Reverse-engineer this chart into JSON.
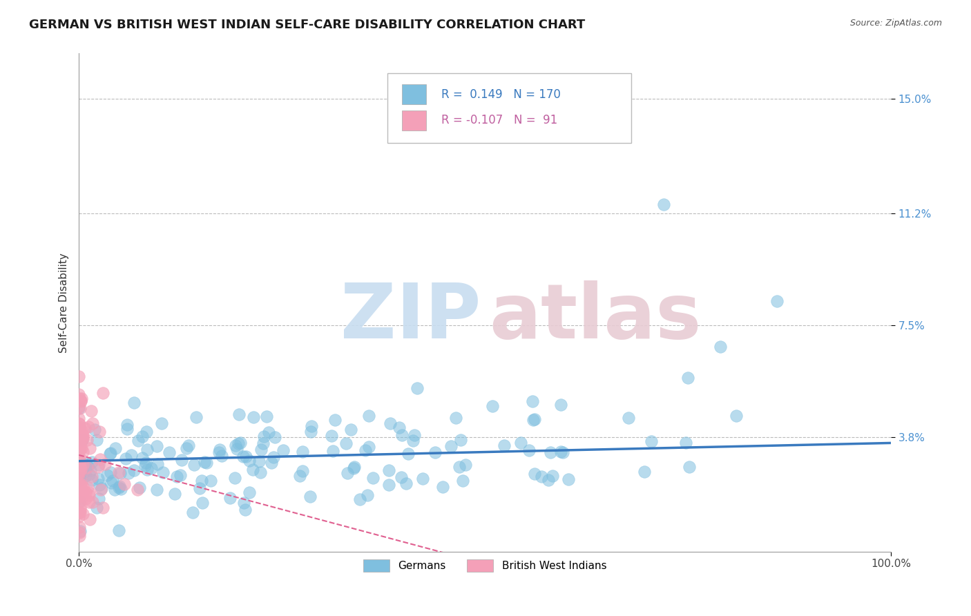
{
  "title": "GERMAN VS BRITISH WEST INDIAN SELF-CARE DISABILITY CORRELATION CHART",
  "source": "Source: ZipAtlas.com",
  "ylabel": "Self-Care Disability",
  "xlim": [
    0,
    1
  ],
  "ylim": [
    0,
    0.165
  ],
  "yticks": [
    0.038,
    0.075,
    0.112,
    0.15
  ],
  "ytick_labels": [
    "3.8%",
    "7.5%",
    "11.2%",
    "15.0%"
  ],
  "legend_labels": [
    "Germans",
    "British West Indians"
  ],
  "r_german": 0.149,
  "n_german": 170,
  "r_bwi": -0.107,
  "n_bwi": 91,
  "color_german": "#7fbfdf",
  "color_bwi": "#f4a0b8",
  "color_german_line": "#3a7abf",
  "color_bwi_line": "#e06090",
  "color_ytick": "#4a90d0",
  "background_color": "#ffffff",
  "grid_color": "#bbbbbb",
  "title_fontsize": 13,
  "axis_label_fontsize": 11,
  "tick_fontsize": 11,
  "watermark_zip_color": "#c8ddf0",
  "watermark_atlas_color": "#e8ccd4",
  "seed_german": 42,
  "seed_bwi": 77
}
